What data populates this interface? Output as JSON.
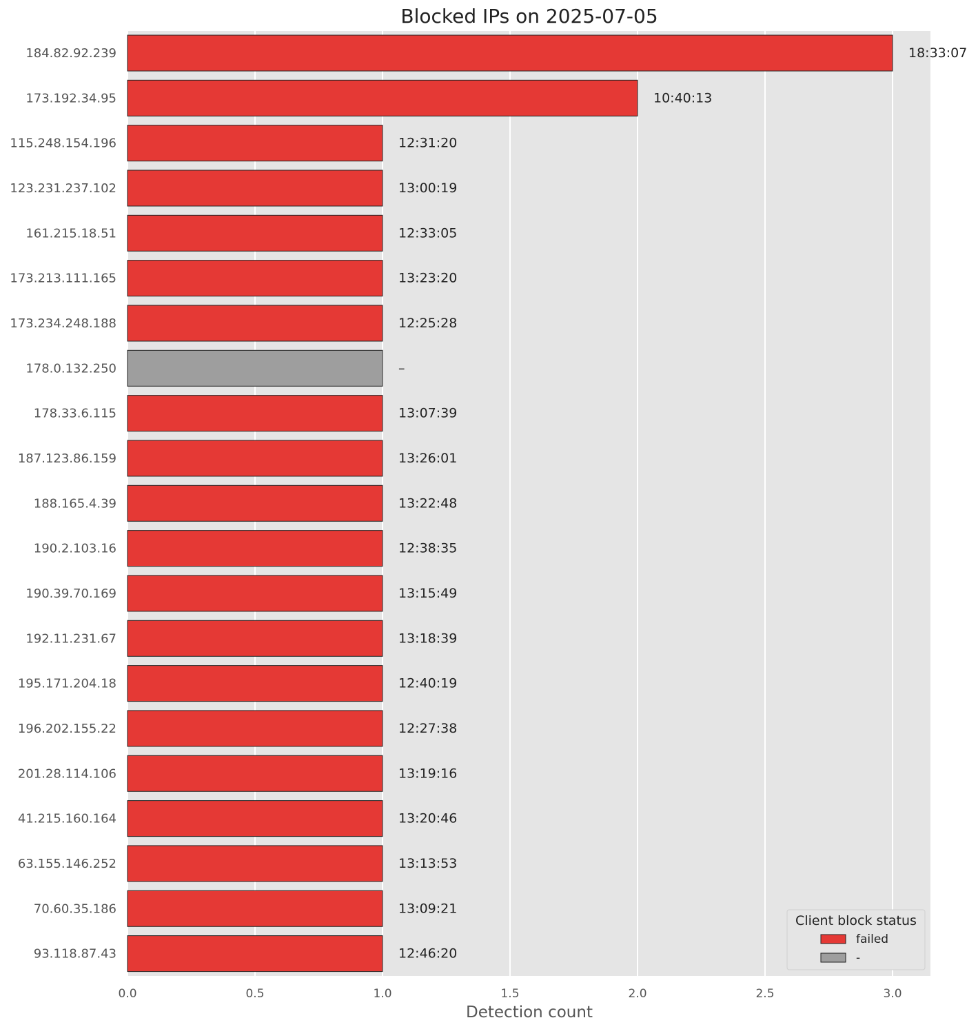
{
  "chart_data": {
    "type": "bar",
    "orientation": "horizontal",
    "title": "Blocked IPs on 2025-07-05",
    "xlabel": "Detection count",
    "ylabel": "",
    "xlim": [
      0,
      3.15
    ],
    "xticks": [
      "0.0",
      "0.5",
      "1.0",
      "1.5",
      "2.0",
      "2.5",
      "3.0"
    ],
    "xtick_values": [
      0,
      0.5,
      1.0,
      1.5,
      2.0,
      2.5,
      3.0
    ],
    "grid": true,
    "legend": {
      "title": "Client block status",
      "placement": "bottom-right",
      "entries": [
        {
          "label": "failed",
          "color": "#e53935"
        },
        {
          "label": "-",
          "color": "#9e9e9e"
        }
      ]
    },
    "bars": [
      {
        "ip": "184.82.92.239",
        "value": 3,
        "time": "18:33:07",
        "status": "failed"
      },
      {
        "ip": "173.192.34.95",
        "value": 2,
        "time": "10:40:13",
        "status": "failed"
      },
      {
        "ip": "115.248.154.196",
        "value": 1,
        "time": "12:31:20",
        "status": "failed"
      },
      {
        "ip": "123.231.237.102",
        "value": 1,
        "time": "13:00:19",
        "status": "failed"
      },
      {
        "ip": "161.215.18.51",
        "value": 1,
        "time": "12:33:05",
        "status": "failed"
      },
      {
        "ip": "173.213.111.165",
        "value": 1,
        "time": "13:23:20",
        "status": "failed"
      },
      {
        "ip": "173.234.248.188",
        "value": 1,
        "time": "12:25:28",
        "status": "failed"
      },
      {
        "ip": "178.0.132.250",
        "value": 1,
        "time": "–",
        "status": "-"
      },
      {
        "ip": "178.33.6.115",
        "value": 1,
        "time": "13:07:39",
        "status": "failed"
      },
      {
        "ip": "187.123.86.159",
        "value": 1,
        "time": "13:26:01",
        "status": "failed"
      },
      {
        "ip": "188.165.4.39",
        "value": 1,
        "time": "13:22:48",
        "status": "failed"
      },
      {
        "ip": "190.2.103.16",
        "value": 1,
        "time": "12:38:35",
        "status": "failed"
      },
      {
        "ip": "190.39.70.169",
        "value": 1,
        "time": "13:15:49",
        "status": "failed"
      },
      {
        "ip": "192.11.231.67",
        "value": 1,
        "time": "13:18:39",
        "status": "failed"
      },
      {
        "ip": "195.171.204.18",
        "value": 1,
        "time": "12:40:19",
        "status": "failed"
      },
      {
        "ip": "196.202.155.22",
        "value": 1,
        "time": "12:27:38",
        "status": "failed"
      },
      {
        "ip": "201.28.114.106",
        "value": 1,
        "time": "13:19:16",
        "status": "failed"
      },
      {
        "ip": "41.215.160.164",
        "value": 1,
        "time": "13:20:46",
        "status": "failed"
      },
      {
        "ip": "63.155.146.252",
        "value": 1,
        "time": "13:13:53",
        "status": "failed"
      },
      {
        "ip": "70.60.35.186",
        "value": 1,
        "time": "13:09:21",
        "status": "failed"
      },
      {
        "ip": "93.118.87.43",
        "value": 1,
        "time": "12:46:20",
        "status": "failed"
      }
    ]
  },
  "colors": {
    "failed": "#e53935",
    "-": "#9e9e9e",
    "plot_background": "#e5e5e5",
    "grid": "#ffffff"
  }
}
